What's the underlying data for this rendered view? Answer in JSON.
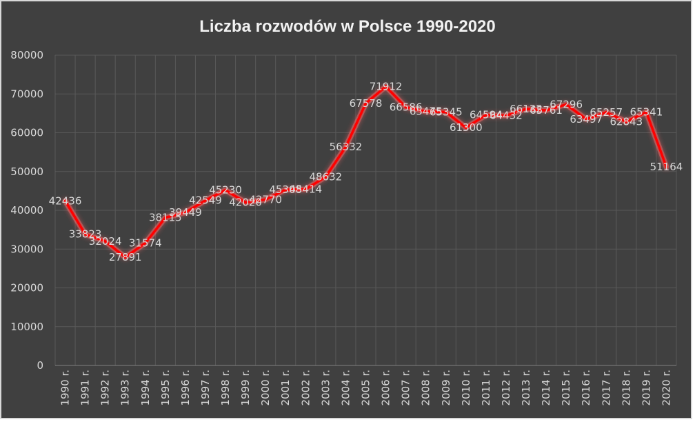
{
  "chart_data": {
    "type": "line",
    "title": "Liczba rozwodów w Polsce 1990-2020",
    "xlabel": "",
    "ylabel": "",
    "ylim": [
      0,
      80000
    ],
    "yticks": [
      "0",
      "10000",
      "20000",
      "30000",
      "40000",
      "50000",
      "60000",
      "70000",
      "80000"
    ],
    "grid": true,
    "legend": "none",
    "categories": [
      "1990 r.",
      "1991 r.",
      "1992 r.",
      "1993 r.",
      "1994 r.",
      "1995 r.",
      "1996 r.",
      "1997 r.",
      "1998 r.",
      "1999 r.",
      "2000 r.",
      "2001 r.",
      "2002 r.",
      "2003 r.",
      "2004 r.",
      "2005 r.",
      "2006 r.",
      "2007 r.",
      "2008 r.",
      "2009 r.",
      "2010 r.",
      "2011 r.",
      "2012 r.",
      "2013 r.",
      "2014 r.",
      "2015 r.",
      "2016 r.",
      "2017 r.",
      "2018 r.",
      "2019 r.",
      "2020 r."
    ],
    "series": [
      {
        "values": [
          42436,
          33823,
          32024,
          27891,
          31574,
          38115,
          39449,
          42549,
          45230,
          42020,
          42770,
          45308,
          45414,
          48632,
          56332,
          67578,
          71912,
          66586,
          65475,
          65345,
          61300,
          64594,
          64432,
          66132,
          65761,
          67296,
          63497,
          65257,
          62843,
          65341,
          51164
        ],
        "labels": [
          "42436",
          "33823",
          "32024",
          "27891",
          "31574",
          "38115",
          "39449",
          "42549",
          "45230",
          "42020",
          "42770",
          "45308",
          "45414",
          "48632",
          "56332",
          "67578",
          "71912",
          "66586",
          "65475",
          "65345",
          "61300",
          "64594",
          "64432",
          "66132",
          "65761",
          "67296",
          "63497",
          "65257",
          "62843",
          "65341",
          "51164"
        ]
      }
    ],
    "colors": {
      "background": "#404040",
      "line": "#ff0000",
      "glow": "#ff6666",
      "grid": "#595959",
      "text": "#d9d9d9",
      "title": "#f2f2f2"
    }
  }
}
